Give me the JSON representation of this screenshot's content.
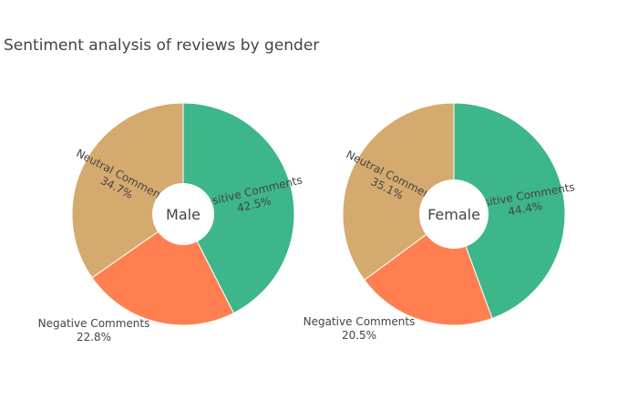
{
  "chart_data": {
    "type": "pie",
    "title": "Sentiment analysis of reviews by gender",
    "hole": true,
    "colors": {
      "Positive Comments": "#3db68a",
      "Negative Comments": "#ff7f50",
      "Neutral Comments": "#d5aa6f"
    },
    "charts": [
      {
        "name": "Male",
        "slices": [
          {
            "label": "Positive Comments",
            "value": 42.5,
            "value_text": "42.5%"
          },
          {
            "label": "Negative Comments",
            "value": 22.8,
            "value_text": "22.8%"
          },
          {
            "label": "Neutral Comments",
            "value": 34.7,
            "value_text": "34.7%"
          }
        ]
      },
      {
        "name": "Female",
        "slices": [
          {
            "label": "Positive Comments",
            "value": 44.4,
            "value_text": "44.4%"
          },
          {
            "label": "Negative Comments",
            "value": 20.5,
            "value_text": "20.5%"
          },
          {
            "label": "Neutral Comments",
            "value": 35.1,
            "value_text": "35.1%"
          }
        ]
      }
    ]
  }
}
